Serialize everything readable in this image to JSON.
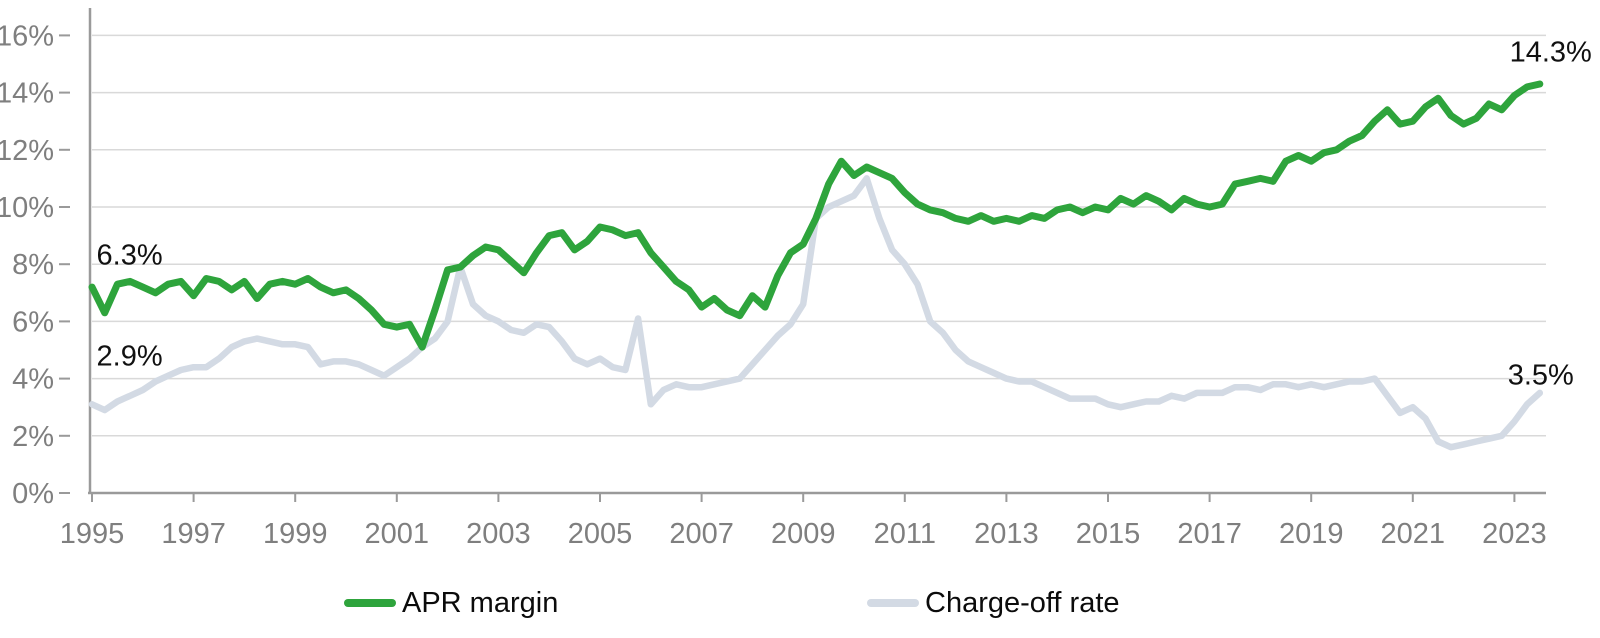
{
  "page": {
    "background": "#ffffff"
  },
  "chart_data": {
    "type": "line",
    "title": "",
    "frequency": "quarterly",
    "grid": "horizontal",
    "legend_position": "bottom",
    "x_axis": {
      "start_year": 1995,
      "start_label": "1995 Q1",
      "end_label": "2023 Q3",
      "tick_years": [
        1995,
        1997,
        1999,
        2001,
        2003,
        2005,
        2007,
        2009,
        2011,
        2013,
        2015,
        2017,
        2019,
        2021,
        2023
      ]
    },
    "y_axis": {
      "unit": "%",
      "min": 0,
      "max": 16,
      "tick_values": [
        0,
        2,
        4,
        6,
        8,
        10,
        12,
        14,
        16
      ],
      "tick_labels": [
        "0%",
        "2%",
        "4%",
        "6%",
        "8%",
        "10%",
        "12%",
        "14%",
        "16%"
      ]
    },
    "colors": {
      "axis": "#9a9a9a",
      "gridline": "#d9d9d9",
      "tick_text": "#7f7f7f",
      "annotation_text": "#111111"
    },
    "series": [
      {
        "name": "APR margin",
        "color": "#2ea43c",
        "stroke_width": 7,
        "values": [
          7.2,
          6.3,
          7.3,
          7.4,
          7.2,
          7.0,
          7.3,
          7.4,
          6.9,
          7.5,
          7.4,
          7.1,
          7.4,
          6.8,
          7.3,
          7.4,
          7.3,
          7.5,
          7.2,
          7.0,
          7.1,
          6.8,
          6.4,
          5.9,
          5.8,
          5.9,
          5.1,
          6.4,
          7.8,
          7.9,
          8.3,
          8.6,
          8.5,
          8.1,
          7.7,
          8.4,
          9.0,
          9.1,
          8.5,
          8.8,
          9.3,
          9.2,
          9.0,
          9.1,
          8.4,
          7.9,
          7.4,
          7.1,
          6.5,
          6.8,
          6.4,
          6.2,
          6.9,
          6.5,
          7.6,
          8.4,
          8.7,
          9.6,
          10.8,
          11.6,
          11.1,
          11.4,
          11.2,
          11.0,
          10.5,
          10.1,
          9.9,
          9.8,
          9.6,
          9.5,
          9.7,
          9.5,
          9.6,
          9.5,
          9.7,
          9.6,
          9.9,
          10.0,
          9.8,
          10.0,
          9.9,
          10.3,
          10.1,
          10.4,
          10.2,
          9.9,
          10.3,
          10.1,
          10.0,
          10.1,
          10.8,
          10.9,
          11.0,
          10.9,
          11.6,
          11.8,
          11.6,
          11.9,
          12.0,
          12.3,
          12.5,
          13.0,
          13.4,
          12.9,
          13.0,
          13.5,
          13.8,
          13.2,
          12.9,
          13.1,
          13.6,
          13.4,
          13.9,
          14.2,
          14.3
        ]
      },
      {
        "name": "Charge-off rate",
        "color": "#d3dae4",
        "stroke_width": 6.5,
        "values": [
          3.1,
          2.9,
          3.2,
          3.4,
          3.6,
          3.9,
          4.1,
          4.3,
          4.4,
          4.4,
          4.7,
          5.1,
          5.3,
          5.4,
          5.3,
          5.2,
          5.2,
          5.1,
          4.5,
          4.6,
          4.6,
          4.5,
          4.3,
          4.1,
          4.4,
          4.7,
          5.1,
          5.4,
          6.0,
          7.9,
          6.6,
          6.2,
          6.0,
          5.7,
          5.6,
          5.9,
          5.8,
          5.3,
          4.7,
          4.5,
          4.7,
          4.4,
          4.3,
          6.1,
          3.1,
          3.6,
          3.8,
          3.7,
          3.7,
          3.8,
          3.9,
          4.0,
          4.5,
          5.0,
          5.5,
          5.9,
          6.6,
          9.6,
          10.0,
          10.2,
          10.4,
          11.0,
          9.6,
          8.5,
          8.0,
          7.3,
          6.0,
          5.6,
          5.0,
          4.6,
          4.4,
          4.2,
          4.0,
          3.9,
          3.9,
          3.7,
          3.5,
          3.3,
          3.3,
          3.3,
          3.1,
          3.0,
          3.1,
          3.2,
          3.2,
          3.4,
          3.3,
          3.5,
          3.5,
          3.5,
          3.7,
          3.7,
          3.6,
          3.8,
          3.8,
          3.7,
          3.8,
          3.7,
          3.8,
          3.9,
          3.9,
          4.0,
          3.4,
          2.8,
          3.0,
          2.6,
          1.8,
          1.6,
          1.7,
          1.8,
          1.9,
          2.0,
          2.5,
          3.1,
          3.5
        ]
      }
    ],
    "annotations": [
      {
        "text": "6.3%",
        "year": 1995.05,
        "value": 8.3,
        "align": "left",
        "dx": 2
      },
      {
        "text": "2.9%",
        "year": 1995.05,
        "value": 4.75,
        "align": "left",
        "dx": 2
      },
      {
        "text": "14.3%",
        "year": 2023.5,
        "value": 15.4,
        "align": "right",
        "dx": 52
      },
      {
        "text": "3.5%",
        "year": 2023.5,
        "value": 4.1,
        "align": "right",
        "dx": 34
      }
    ]
  }
}
